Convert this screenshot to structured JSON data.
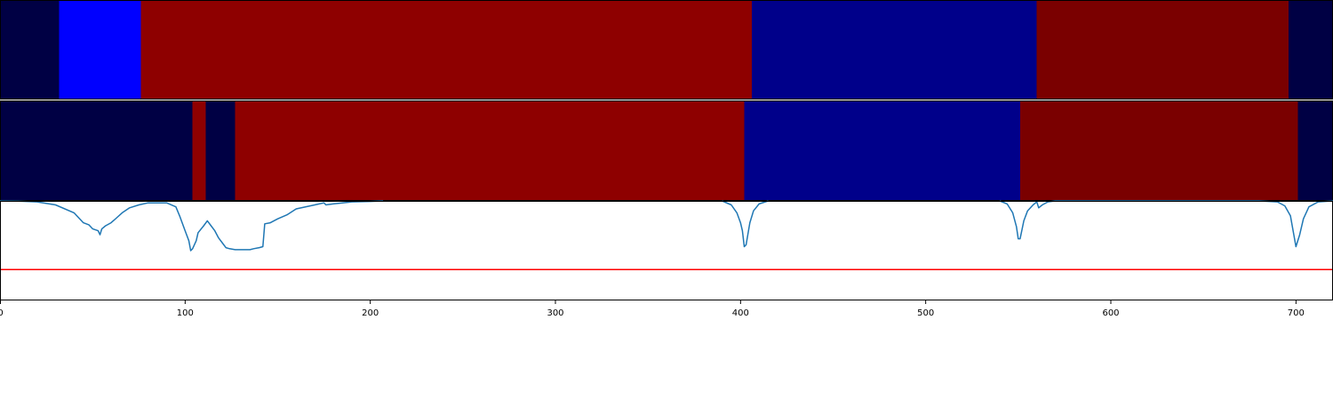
{
  "chart_data": [
    {
      "type": "heatmap",
      "panel": "top-strip",
      "xlim": [
        0,
        720
      ],
      "segments": [
        {
          "start": 0,
          "end": 32,
          "color": "#000044"
        },
        {
          "start": 32,
          "end": 76,
          "color": "#0000ff"
        },
        {
          "start": 76,
          "end": 406,
          "color": "#8e0000"
        },
        {
          "start": 406,
          "end": 560,
          "color": "#00008a"
        },
        {
          "start": 560,
          "end": 696,
          "color": "#7a0000"
        },
        {
          "start": 696,
          "end": 720,
          "color": "#000044"
        }
      ]
    },
    {
      "type": "heatmap",
      "panel": "middle-strip",
      "xlim": [
        0,
        720
      ],
      "segments": [
        {
          "start": 0,
          "end": 104,
          "color": "#000044"
        },
        {
          "start": 104,
          "end": 111,
          "color": "#8e0000"
        },
        {
          "start": 111,
          "end": 127,
          "color": "#000044"
        },
        {
          "start": 127,
          "end": 402,
          "color": "#8e0000"
        },
        {
          "start": 402,
          "end": 551,
          "color": "#00008a"
        },
        {
          "start": 551,
          "end": 701,
          "color": "#7a0000"
        },
        {
          "start": 701,
          "end": 720,
          "color": "#000044"
        }
      ]
    },
    {
      "type": "line",
      "panel": "bottom-plot",
      "xlim": [
        0,
        720
      ],
      "ylim": [
        0,
        1
      ],
      "grid": false,
      "xticks": [
        0,
        100,
        200,
        300,
        400,
        500,
        600,
        700
      ],
      "xtick_labels": [
        "0",
        "100",
        "200",
        "300",
        "400",
        "500",
        "600",
        "700"
      ],
      "threshold": {
        "value": 0.31,
        "color": "#ff0000"
      },
      "series": [
        {
          "color": "#1f77b4",
          "x": [
            0,
            10,
            20,
            30,
            40,
            45,
            48,
            50,
            53,
            54,
            55,
            57,
            60,
            63,
            66,
            70,
            75,
            80,
            90,
            95,
            97,
            100,
            102,
            103,
            104,
            106,
            107,
            110,
            112,
            114,
            116,
            118,
            120,
            122,
            124,
            127,
            130,
            135,
            137,
            140,
            142,
            143,
            146,
            150,
            155,
            160,
            170,
            175,
            176,
            180,
            190,
            200,
            207
          ],
          "y": [
            1.0,
            0.998,
            0.99,
            0.96,
            0.88,
            0.78,
            0.76,
            0.72,
            0.7,
            0.66,
            0.72,
            0.75,
            0.78,
            0.83,
            0.88,
            0.93,
            0.96,
            0.98,
            0.98,
            0.94,
            0.85,
            0.7,
            0.6,
            0.5,
            0.52,
            0.6,
            0.68,
            0.75,
            0.8,
            0.75,
            0.7,
            0.63,
            0.58,
            0.53,
            0.52,
            0.51,
            0.51,
            0.51,
            0.52,
            0.53,
            0.54,
            0.77,
            0.78,
            0.82,
            0.86,
            0.92,
            0.96,
            0.98,
            0.96,
            0.97,
            0.99,
            0.995,
            1.0
          ]
        },
        {
          "color": "#1f77b4",
          "x": [
            390,
            395,
            398,
            400,
            401,
            402,
            403,
            405,
            407,
            410,
            415
          ],
          "y": [
            1.0,
            0.96,
            0.88,
            0.78,
            0.7,
            0.54,
            0.56,
            0.78,
            0.9,
            0.97,
            1.0
          ]
        },
        {
          "color": "#1f77b4",
          "x": [
            540,
            544,
            547,
            549,
            550,
            551,
            553,
            555,
            558,
            560,
            561,
            563,
            566,
            570,
            580,
            600
          ],
          "y": [
            1.0,
            0.97,
            0.88,
            0.74,
            0.62,
            0.62,
            0.8,
            0.9,
            0.96,
            0.99,
            0.93,
            0.96,
            0.99,
            1.0,
            1.0,
            1.0
          ]
        },
        {
          "color": "#1f77b4",
          "x": [
            600,
            680,
            690,
            694,
            697,
            699,
            700,
            702,
            704,
            707,
            712,
            720
          ],
          "y": [
            1.0,
            1.0,
            0.99,
            0.95,
            0.85,
            0.64,
            0.54,
            0.66,
            0.82,
            0.94,
            0.99,
            1.0
          ]
        }
      ]
    }
  ]
}
